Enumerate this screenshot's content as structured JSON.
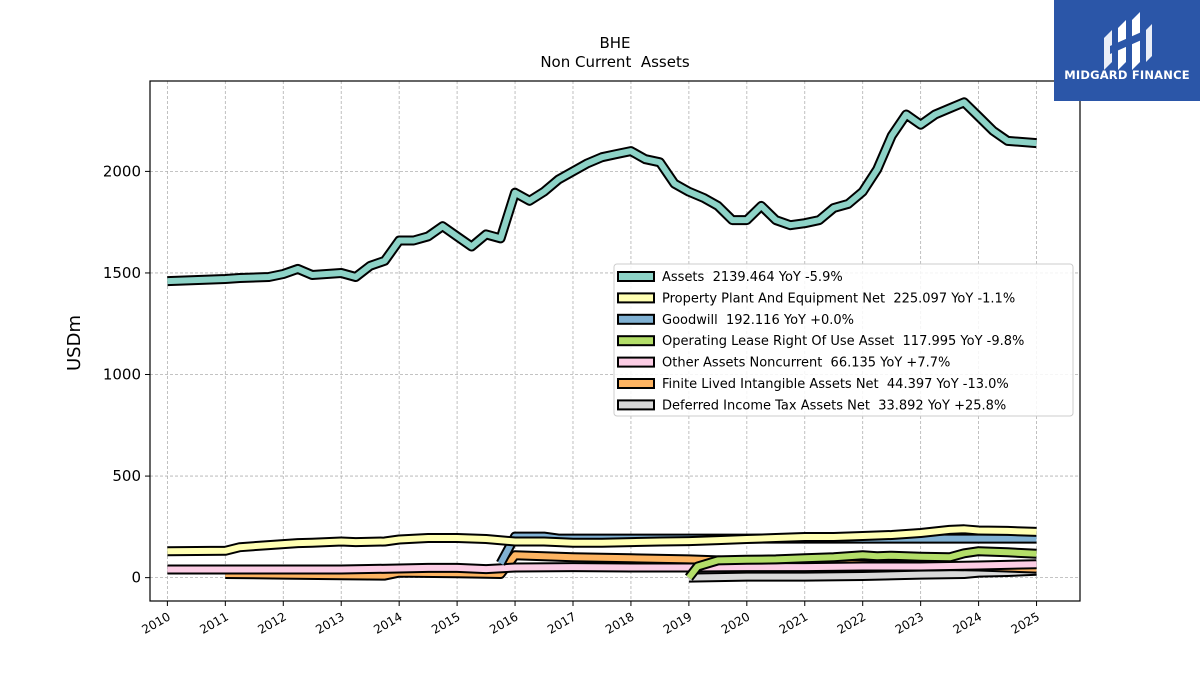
{
  "chart_data": {
    "type": "line",
    "title": "BHE",
    "subtitle": "Non Current  Assets",
    "ylabel": "USDm",
    "xlabel": "",
    "xlim": [
      2009.7,
      2025.75
    ],
    "ylim": [
      -115,
      2445
    ],
    "x_ticks": [
      "2010",
      "2011",
      "2012",
      "2013",
      "2014",
      "2015",
      "2016",
      "2017",
      "2018",
      "2019",
      "2020",
      "2021",
      "2022",
      "2023",
      "2024",
      "2025"
    ],
    "y_ticks": [
      0,
      500,
      1000,
      1500,
      2000
    ],
    "grid": true,
    "legend_position": "center-right",
    "series": [
      {
        "name": "Assets",
        "legend": "Assets  2139.464 YoY -5.9%",
        "color": "#8dd3c7",
        "points": [
          [
            2010.0,
            1460
          ],
          [
            2011.0,
            1470
          ],
          [
            2011.25,
            1475
          ],
          [
            2011.75,
            1480
          ],
          [
            2012.0,
            1495
          ],
          [
            2012.25,
            1520
          ],
          [
            2012.5,
            1490
          ],
          [
            2013.0,
            1500
          ],
          [
            2013.25,
            1480
          ],
          [
            2013.5,
            1535
          ],
          [
            2013.75,
            1560
          ],
          [
            2014.0,
            1660
          ],
          [
            2014.25,
            1660
          ],
          [
            2014.5,
            1680
          ],
          [
            2014.75,
            1730
          ],
          [
            2015.0,
            1680
          ],
          [
            2015.25,
            1630
          ],
          [
            2015.5,
            1690
          ],
          [
            2015.75,
            1670
          ],
          [
            2016.0,
            1895
          ],
          [
            2016.25,
            1855
          ],
          [
            2016.5,
            1900
          ],
          [
            2016.75,
            1960
          ],
          [
            2017.0,
            2000
          ],
          [
            2017.25,
            2040
          ],
          [
            2017.5,
            2070
          ],
          [
            2017.75,
            2085
          ],
          [
            2018.0,
            2100
          ],
          [
            2018.25,
            2060
          ],
          [
            2018.5,
            2045
          ],
          [
            2018.75,
            1940
          ],
          [
            2019.0,
            1900
          ],
          [
            2019.25,
            1870
          ],
          [
            2019.5,
            1830
          ],
          [
            2019.75,
            1760
          ],
          [
            2020.0,
            1760
          ],
          [
            2020.25,
            1830
          ],
          [
            2020.5,
            1760
          ],
          [
            2020.75,
            1735
          ],
          [
            2021.0,
            1745
          ],
          [
            2021.25,
            1760
          ],
          [
            2021.5,
            1820
          ],
          [
            2021.75,
            1840
          ],
          [
            2022.0,
            1900
          ],
          [
            2022.25,
            2010
          ],
          [
            2022.5,
            2175
          ],
          [
            2022.75,
            2280
          ],
          [
            2023.0,
            2230
          ],
          [
            2023.25,
            2280
          ],
          [
            2023.5,
            2310
          ],
          [
            2023.75,
            2340
          ],
          [
            2024.0,
            2270
          ],
          [
            2024.25,
            2200
          ],
          [
            2024.5,
            2150
          ],
          [
            2025.0,
            2139.464
          ]
        ]
      },
      {
        "name": "Property Plant And Equipment Net",
        "legend": "Property Plant And Equipment Net  225.097 YoY -1.1%",
        "color": "#ffffb3",
        "points": [
          [
            2010.0,
            130
          ],
          [
            2011.0,
            132
          ],
          [
            2011.25,
            150
          ],
          [
            2011.75,
            160
          ],
          [
            2012.0,
            165
          ],
          [
            2012.25,
            170
          ],
          [
            2012.5,
            172
          ],
          [
            2013.0,
            178
          ],
          [
            2013.25,
            175
          ],
          [
            2013.75,
            178
          ],
          [
            2014.0,
            188
          ],
          [
            2014.5,
            195
          ],
          [
            2015.0,
            195
          ],
          [
            2015.5,
            190
          ],
          [
            2016.0,
            178
          ],
          [
            2016.5,
            178
          ],
          [
            2017.0,
            172
          ],
          [
            2017.5,
            172
          ],
          [
            2018.0,
            175
          ],
          [
            2018.5,
            178
          ],
          [
            2019.0,
            180
          ],
          [
            2019.5,
            185
          ],
          [
            2020.0,
            190
          ],
          [
            2020.5,
            195
          ],
          [
            2021.0,
            200
          ],
          [
            2021.5,
            200
          ],
          [
            2022.0,
            205
          ],
          [
            2022.5,
            210
          ],
          [
            2023.0,
            220
          ],
          [
            2023.5,
            235
          ],
          [
            2023.75,
            238
          ],
          [
            2024.0,
            232
          ],
          [
            2024.5,
            230
          ],
          [
            2025.0,
            225.097
          ]
        ]
      },
      {
        "name": "Goodwill",
        "legend": "Goodwill  192.116 YoY +0.0%",
        "color": "#80b1d3",
        "points": [
          [
            2015.75,
            70
          ],
          [
            2016.0,
            202
          ],
          [
            2016.5,
            202
          ],
          [
            2016.75,
            192
          ],
          [
            2017.0,
            192
          ],
          [
            2018.0,
            192
          ],
          [
            2019.0,
            192
          ],
          [
            2020.0,
            192
          ],
          [
            2021.0,
            192
          ],
          [
            2022.0,
            192
          ],
          [
            2023.0,
            192
          ],
          [
            2024.0,
            192
          ],
          [
            2025.0,
            192.116
          ]
        ]
      },
      {
        "name": "Operating Lease Right Of Use Asset",
        "legend": "Operating Lease Right Of Use Asset  117.995 YoY -9.8%",
        "color": "#b3de69",
        "points": [
          [
            2019.0,
            0
          ],
          [
            2019.15,
            55
          ],
          [
            2019.5,
            85
          ],
          [
            2020.0,
            88
          ],
          [
            2020.5,
            90
          ],
          [
            2021.0,
            95
          ],
          [
            2021.5,
            100
          ],
          [
            2022.0,
            110
          ],
          [
            2022.25,
            105
          ],
          [
            2022.5,
            108
          ],
          [
            2023.0,
            103
          ],
          [
            2023.5,
            100
          ],
          [
            2023.75,
            120
          ],
          [
            2024.0,
            130
          ],
          [
            2024.5,
            125
          ],
          [
            2025.0,
            117.995
          ]
        ]
      },
      {
        "name": "Other Assets Noncurrent",
        "legend": "Other Assets Noncurrent  66.135 YoY +7.7%",
        "color": "#fccde5",
        "points": [
          [
            2010.0,
            40
          ],
          [
            2011.0,
            40
          ],
          [
            2012.0,
            40
          ],
          [
            2013.0,
            40
          ],
          [
            2014.0,
            45
          ],
          [
            2014.5,
            48
          ],
          [
            2015.0,
            48
          ],
          [
            2015.5,
            42
          ],
          [
            2016.0,
            50
          ],
          [
            2017.0,
            52
          ],
          [
            2018.0,
            50
          ],
          [
            2019.0,
            50
          ],
          [
            2020.0,
            52
          ],
          [
            2021.0,
            52
          ],
          [
            2022.0,
            55
          ],
          [
            2023.0,
            55
          ],
          [
            2024.0,
            60
          ],
          [
            2025.0,
            66.135
          ]
        ]
      },
      {
        "name": "Finite Lived Intangible Assets Net",
        "legend": "Finite Lived Intangible Assets Net  44.397 YoY -13.0%",
        "color": "#fdb462",
        "points": [
          [
            2011.0,
            18
          ],
          [
            2012.0,
            15
          ],
          [
            2013.0,
            12
          ],
          [
            2013.75,
            10
          ],
          [
            2014.0,
            25
          ],
          [
            2015.0,
            22
          ],
          [
            2015.75,
            18
          ],
          [
            2016.0,
            110
          ],
          [
            2016.5,
            105
          ],
          [
            2017.0,
            100
          ],
          [
            2018.0,
            95
          ],
          [
            2019.0,
            90
          ],
          [
            2020.0,
            80
          ],
          [
            2021.0,
            72
          ],
          [
            2022.0,
            65
          ],
          [
            2023.0,
            60
          ],
          [
            2024.0,
            55
          ],
          [
            2025.0,
            44.397
          ]
        ]
      },
      {
        "name": "Deferred Income Tax Assets Net",
        "legend": "Deferred Income Tax Assets Net  33.892 YoY +25.8%",
        "color": "#d9d9d9",
        "points": [
          [
            2019.0,
            0
          ],
          [
            2020.0,
            5
          ],
          [
            2021.0,
            5
          ],
          [
            2022.0,
            8
          ],
          [
            2023.0,
            15
          ],
          [
            2023.75,
            18
          ],
          [
            2024.0,
            25
          ],
          [
            2024.5,
            28
          ],
          [
            2025.0,
            33.892
          ]
        ]
      }
    ]
  },
  "logo": {
    "text": "MIDGARD FINANCE",
    "bg_color": "#2b56a8"
  }
}
